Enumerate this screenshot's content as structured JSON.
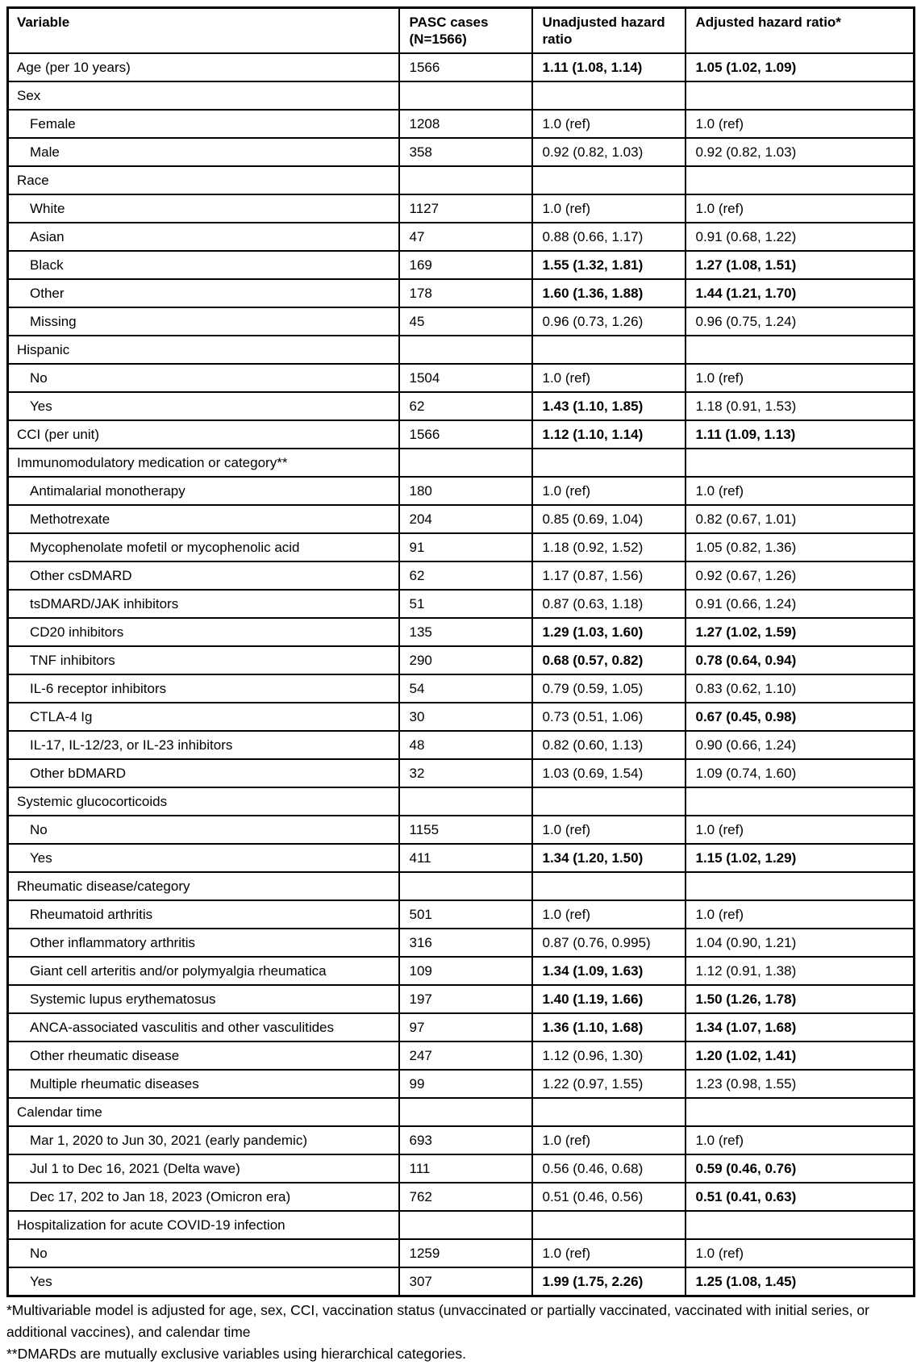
{
  "table": {
    "headers": [
      {
        "label": "Variable"
      },
      {
        "label": "PASC cases (N=1566)"
      },
      {
        "label": "Unadjusted hazard ratio"
      },
      {
        "label": "Adjusted hazard ratio*"
      }
    ],
    "rows": [
      {
        "variable": "Age (per 10 years)",
        "indent": false,
        "cases": "1566",
        "unadjusted": "1.11 (1.08, 1.14)",
        "unadjusted_bold": true,
        "adjusted": "1.05 (1.02, 1.09)",
        "adjusted_bold": true
      },
      {
        "variable": "Sex",
        "indent": false,
        "cases": "",
        "unadjusted": "",
        "unadjusted_bold": false,
        "adjusted": "",
        "adjusted_bold": false
      },
      {
        "variable": "Female",
        "indent": true,
        "cases": "1208",
        "unadjusted": "1.0 (ref)",
        "unadjusted_bold": false,
        "adjusted": "1.0 (ref)",
        "adjusted_bold": false
      },
      {
        "variable": "Male",
        "indent": true,
        "cases": "358",
        "unadjusted": "0.92 (0.82, 1.03)",
        "unadjusted_bold": false,
        "adjusted": "0.92 (0.82, 1.03)",
        "adjusted_bold": false
      },
      {
        "variable": "Race",
        "indent": false,
        "cases": "",
        "unadjusted": "",
        "unadjusted_bold": false,
        "adjusted": "",
        "adjusted_bold": false
      },
      {
        "variable": "White",
        "indent": true,
        "cases": "1127",
        "unadjusted": "1.0 (ref)",
        "unadjusted_bold": false,
        "adjusted": "1.0 (ref)",
        "adjusted_bold": false
      },
      {
        "variable": "Asian",
        "indent": true,
        "cases": "47",
        "unadjusted": "0.88 (0.66, 1.17)",
        "unadjusted_bold": false,
        "adjusted": "0.91 (0.68, 1.22)",
        "adjusted_bold": false
      },
      {
        "variable": "Black",
        "indent": true,
        "cases": "169",
        "unadjusted": "1.55 (1.32, 1.81)",
        "unadjusted_bold": true,
        "adjusted": "1.27 (1.08, 1.51)",
        "adjusted_bold": true
      },
      {
        "variable": "Other",
        "indent": true,
        "cases": "178",
        "unadjusted": "1.60 (1.36, 1.88)",
        "unadjusted_bold": true,
        "adjusted": "1.44 (1.21, 1.70)",
        "adjusted_bold": true
      },
      {
        "variable": "Missing",
        "indent": true,
        "cases": "45",
        "unadjusted": "0.96 (0.73, 1.26)",
        "unadjusted_bold": false,
        "adjusted": "0.96 (0.75, 1.24)",
        "adjusted_bold": false
      },
      {
        "variable": "Hispanic",
        "indent": false,
        "cases": "",
        "unadjusted": "",
        "unadjusted_bold": false,
        "adjusted": "",
        "adjusted_bold": false
      },
      {
        "variable": "No",
        "indent": true,
        "cases": "1504",
        "unadjusted": "1.0 (ref)",
        "unadjusted_bold": false,
        "adjusted": "1.0 (ref)",
        "adjusted_bold": false
      },
      {
        "variable": "Yes",
        "indent": true,
        "cases": "62",
        "unadjusted": "1.43 (1.10, 1.85)",
        "unadjusted_bold": true,
        "adjusted": "1.18 (0.91, 1.53)",
        "adjusted_bold": false
      },
      {
        "variable": "CCI (per unit)",
        "indent": false,
        "cases": "1566",
        "unadjusted": "1.12 (1.10, 1.14)",
        "unadjusted_bold": true,
        "adjusted": "1.11 (1.09, 1.13)",
        "adjusted_bold": true
      },
      {
        "variable": "Immunomodulatory medication or category**",
        "indent": false,
        "cases": "",
        "unadjusted": "",
        "unadjusted_bold": false,
        "adjusted": "",
        "adjusted_bold": false
      },
      {
        "variable": "Antimalarial monotherapy",
        "indent": true,
        "cases": "180",
        "unadjusted": "1.0 (ref)",
        "unadjusted_bold": false,
        "adjusted": "1.0 (ref)",
        "adjusted_bold": false
      },
      {
        "variable": "Methotrexate",
        "indent": true,
        "cases": "204",
        "unadjusted": "0.85 (0.69, 1.04)",
        "unadjusted_bold": false,
        "adjusted": "0.82 (0.67, 1.01)",
        "adjusted_bold": false
      },
      {
        "variable": "Mycophenolate mofetil or mycophenolic acid",
        "indent": true,
        "cases": "91",
        "unadjusted": "1.18 (0.92, 1.52)",
        "unadjusted_bold": false,
        "adjusted": "1.05 (0.82, 1.36)",
        "adjusted_bold": false
      },
      {
        "variable": "Other csDMARD",
        "indent": true,
        "cases": "62",
        "unadjusted": "1.17 (0.87, 1.56)",
        "unadjusted_bold": false,
        "adjusted": "0.92 (0.67, 1.26)",
        "adjusted_bold": false
      },
      {
        "variable": "tsDMARD/JAK inhibitors",
        "indent": true,
        "cases": "51",
        "unadjusted": "0.87 (0.63, 1.18)",
        "unadjusted_bold": false,
        "adjusted": "0.91 (0.66, 1.24)",
        "adjusted_bold": false
      },
      {
        "variable": "CD20 inhibitors",
        "indent": true,
        "cases": "135",
        "unadjusted": "1.29 (1.03, 1.60)",
        "unadjusted_bold": true,
        "adjusted": "1.27 (1.02, 1.59)",
        "adjusted_bold": true
      },
      {
        "variable": "TNF inhibitors",
        "indent": true,
        "cases": "290",
        "unadjusted": "0.68 (0.57, 0.82)",
        "unadjusted_bold": true,
        "adjusted": "0.78 (0.64, 0.94)",
        "adjusted_bold": true
      },
      {
        "variable": "IL-6 receptor inhibitors",
        "indent": true,
        "cases": "54",
        "unadjusted": "0.79 (0.59, 1.05)",
        "unadjusted_bold": false,
        "adjusted": "0.83 (0.62, 1.10)",
        "adjusted_bold": false
      },
      {
        "variable": "CTLA-4 Ig",
        "indent": true,
        "cases": "30",
        "unadjusted": "0.73 (0.51, 1.06)",
        "unadjusted_bold": false,
        "adjusted": "0.67 (0.45, 0.98)",
        "adjusted_bold": true
      },
      {
        "variable": "IL-17, IL-12/23, or IL-23 inhibitors",
        "indent": true,
        "cases": "48",
        "unadjusted": "0.82 (0.60, 1.13)",
        "unadjusted_bold": false,
        "adjusted": "0.90 (0.66, 1.24)",
        "adjusted_bold": false
      },
      {
        "variable": "Other bDMARD",
        "indent": true,
        "cases": "32",
        "unadjusted": "1.03 (0.69, 1.54)",
        "unadjusted_bold": false,
        "adjusted": "1.09 (0.74, 1.60)",
        "adjusted_bold": false
      },
      {
        "variable": "Systemic glucocorticoids",
        "indent": false,
        "cases": "",
        "unadjusted": "",
        "unadjusted_bold": false,
        "adjusted": "",
        "adjusted_bold": false
      },
      {
        "variable": "No",
        "indent": true,
        "cases": "1155",
        "unadjusted": "1.0 (ref)",
        "unadjusted_bold": false,
        "adjusted": "1.0 (ref)",
        "adjusted_bold": false
      },
      {
        "variable": "Yes",
        "indent": true,
        "cases": "411",
        "unadjusted": "1.34 (1.20, 1.50)",
        "unadjusted_bold": true,
        "adjusted": "1.15 (1.02, 1.29)",
        "adjusted_bold": true
      },
      {
        "variable": "Rheumatic disease/category",
        "indent": false,
        "cases": "",
        "unadjusted": "",
        "unadjusted_bold": false,
        "adjusted": "",
        "adjusted_bold": false
      },
      {
        "variable": "Rheumatoid arthritis",
        "indent": true,
        "cases": "501",
        "unadjusted": "1.0 (ref)",
        "unadjusted_bold": false,
        "adjusted": "1.0 (ref)",
        "adjusted_bold": false
      },
      {
        "variable": "Other inflammatory arthritis",
        "indent": true,
        "cases": "316",
        "unadjusted": "0.87 (0.76, 0.995)",
        "unadjusted_bold": false,
        "adjusted": "1.04 (0.90, 1.21)",
        "adjusted_bold": false
      },
      {
        "variable": "Giant cell arteritis and/or polymyalgia rheumatica",
        "indent": true,
        "cases": "109",
        "unadjusted": "1.34 (1.09, 1.63)",
        "unadjusted_bold": true,
        "adjusted": "1.12 (0.91, 1.38)",
        "adjusted_bold": false
      },
      {
        "variable": "Systemic lupus erythematosus",
        "indent": true,
        "cases": "197",
        "unadjusted": "1.40 (1.19, 1.66)",
        "unadjusted_bold": true,
        "adjusted": "1.50 (1.26, 1.78)",
        "adjusted_bold": true
      },
      {
        "variable": "ANCA-associated vasculitis and other vasculitides",
        "indent": true,
        "cases": "97",
        "unadjusted": "1.36 (1.10, 1.68)",
        "unadjusted_bold": true,
        "adjusted": "1.34 (1.07, 1.68)",
        "adjusted_bold": true
      },
      {
        "variable": "Other rheumatic disease",
        "indent": true,
        "cases": "247",
        "unadjusted": "1.12 (0.96, 1.30)",
        "unadjusted_bold": false,
        "adjusted": "1.20 (1.02, 1.41)",
        "adjusted_bold": true
      },
      {
        "variable": "Multiple rheumatic diseases",
        "indent": true,
        "cases": "99",
        "unadjusted": "1.22 (0.97, 1.55)",
        "unadjusted_bold": false,
        "adjusted": "1.23 (0.98, 1.55)",
        "adjusted_bold": false
      },
      {
        "variable": "Calendar time",
        "indent": false,
        "cases": "",
        "unadjusted": "",
        "unadjusted_bold": false,
        "adjusted": "",
        "adjusted_bold": false
      },
      {
        "variable": "Mar 1, 2020 to Jun 30, 2021 (early pandemic)",
        "indent": true,
        "cases": "693",
        "unadjusted": "1.0 (ref)",
        "unadjusted_bold": false,
        "adjusted": "1.0 (ref)",
        "adjusted_bold": false
      },
      {
        "variable": "Jul 1 to Dec 16, 2021 (Delta wave)",
        "indent": true,
        "cases": "111",
        "unadjusted": "0.56 (0.46, 0.68)",
        "unadjusted_bold": false,
        "adjusted": "0.59 (0.46, 0.76)",
        "adjusted_bold": true
      },
      {
        "variable": "Dec 17, 202 to Jan 18, 2023 (Omicron era)",
        "indent": true,
        "cases": "762",
        "unadjusted": "0.51 (0.46, 0.56)",
        "unadjusted_bold": false,
        "adjusted": "0.51 (0.41, 0.63)",
        "adjusted_bold": true
      },
      {
        "variable": "Hospitalization for acute COVID-19 infection",
        "indent": false,
        "cases": "",
        "unadjusted": "",
        "unadjusted_bold": false,
        "adjusted": "",
        "adjusted_bold": false
      },
      {
        "variable": "No",
        "indent": true,
        "cases": "1259",
        "unadjusted": "1.0 (ref)",
        "unadjusted_bold": false,
        "adjusted": "1.0 (ref)",
        "adjusted_bold": false
      },
      {
        "variable": "Yes",
        "indent": true,
        "cases": "307",
        "unadjusted": "1.99 (1.75, 2.26)",
        "unadjusted_bold": true,
        "adjusted": "1.25 (1.08, 1.45)",
        "adjusted_bold": true
      }
    ]
  },
  "footnotes": [
    "*Multivariable model is adjusted for age, sex, CCI, vaccination status (unvaccinated or partially vaccinated, vaccinated with initial series, or additional vaccines), and calendar time",
    "**DMARDs are mutually exclusive variables using hierarchical categories."
  ],
  "colors": {
    "background": "#ffffff",
    "text": "#000000",
    "border": "#000000"
  }
}
